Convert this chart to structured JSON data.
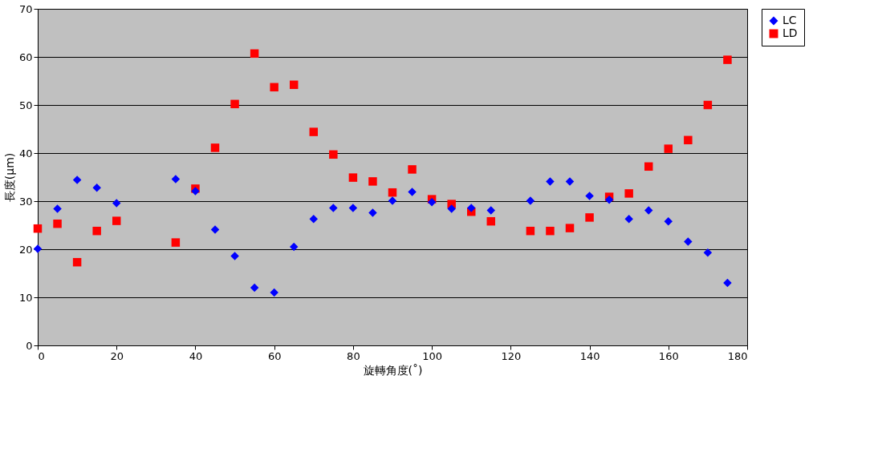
{
  "chart_data": {
    "type": "scatter",
    "xlabel": "旋轉角度(˚)",
    "ylabel": "長度(μm)",
    "x": [
      0,
      5,
      10,
      15,
      20,
      35,
      40,
      45,
      50,
      55,
      60,
      65,
      70,
      75,
      80,
      85,
      90,
      95,
      100,
      105,
      110,
      115,
      125,
      130,
      135,
      140,
      145,
      150,
      155,
      160,
      165,
      170,
      175
    ],
    "series": [
      {
        "name": "LC",
        "color": "#0000ff",
        "marker": "diamond",
        "values": [
          20.1,
          28.4,
          34.4,
          32.8,
          29.6,
          34.6,
          32.1,
          24.1,
          18.6,
          12.0,
          11.0,
          20.5,
          26.3,
          28.6,
          28.6,
          27.6,
          30.1,
          31.9,
          29.8,
          28.4,
          28.6,
          28.1,
          30.1,
          34.1,
          34.1,
          31.1,
          30.3,
          26.3,
          28.1,
          25.8,
          21.6,
          19.3,
          13.0
        ]
      },
      {
        "name": "LD",
        "color": "#ff0000",
        "marker": "square",
        "values": [
          24.3,
          25.3,
          17.3,
          23.8,
          25.9,
          21.4,
          32.6,
          41.1,
          50.2,
          60.7,
          53.7,
          54.2,
          44.4,
          39.7,
          34.9,
          34.1,
          31.8,
          36.6,
          30.4,
          29.4,
          27.8,
          25.8,
          23.8,
          23.8,
          24.4,
          26.6,
          30.9,
          31.6,
          37.2,
          40.9,
          42.7,
          50.0,
          59.4
        ]
      }
    ],
    "xlim": [
      0,
      180
    ],
    "xticks": [
      0,
      20,
      40,
      60,
      80,
      100,
      120,
      140,
      160,
      180
    ],
    "ylim": [
      0,
      70
    ],
    "yticks": [
      0,
      10,
      20,
      30,
      40,
      50,
      60,
      70
    ],
    "grid": "y",
    "legend": "right"
  }
}
